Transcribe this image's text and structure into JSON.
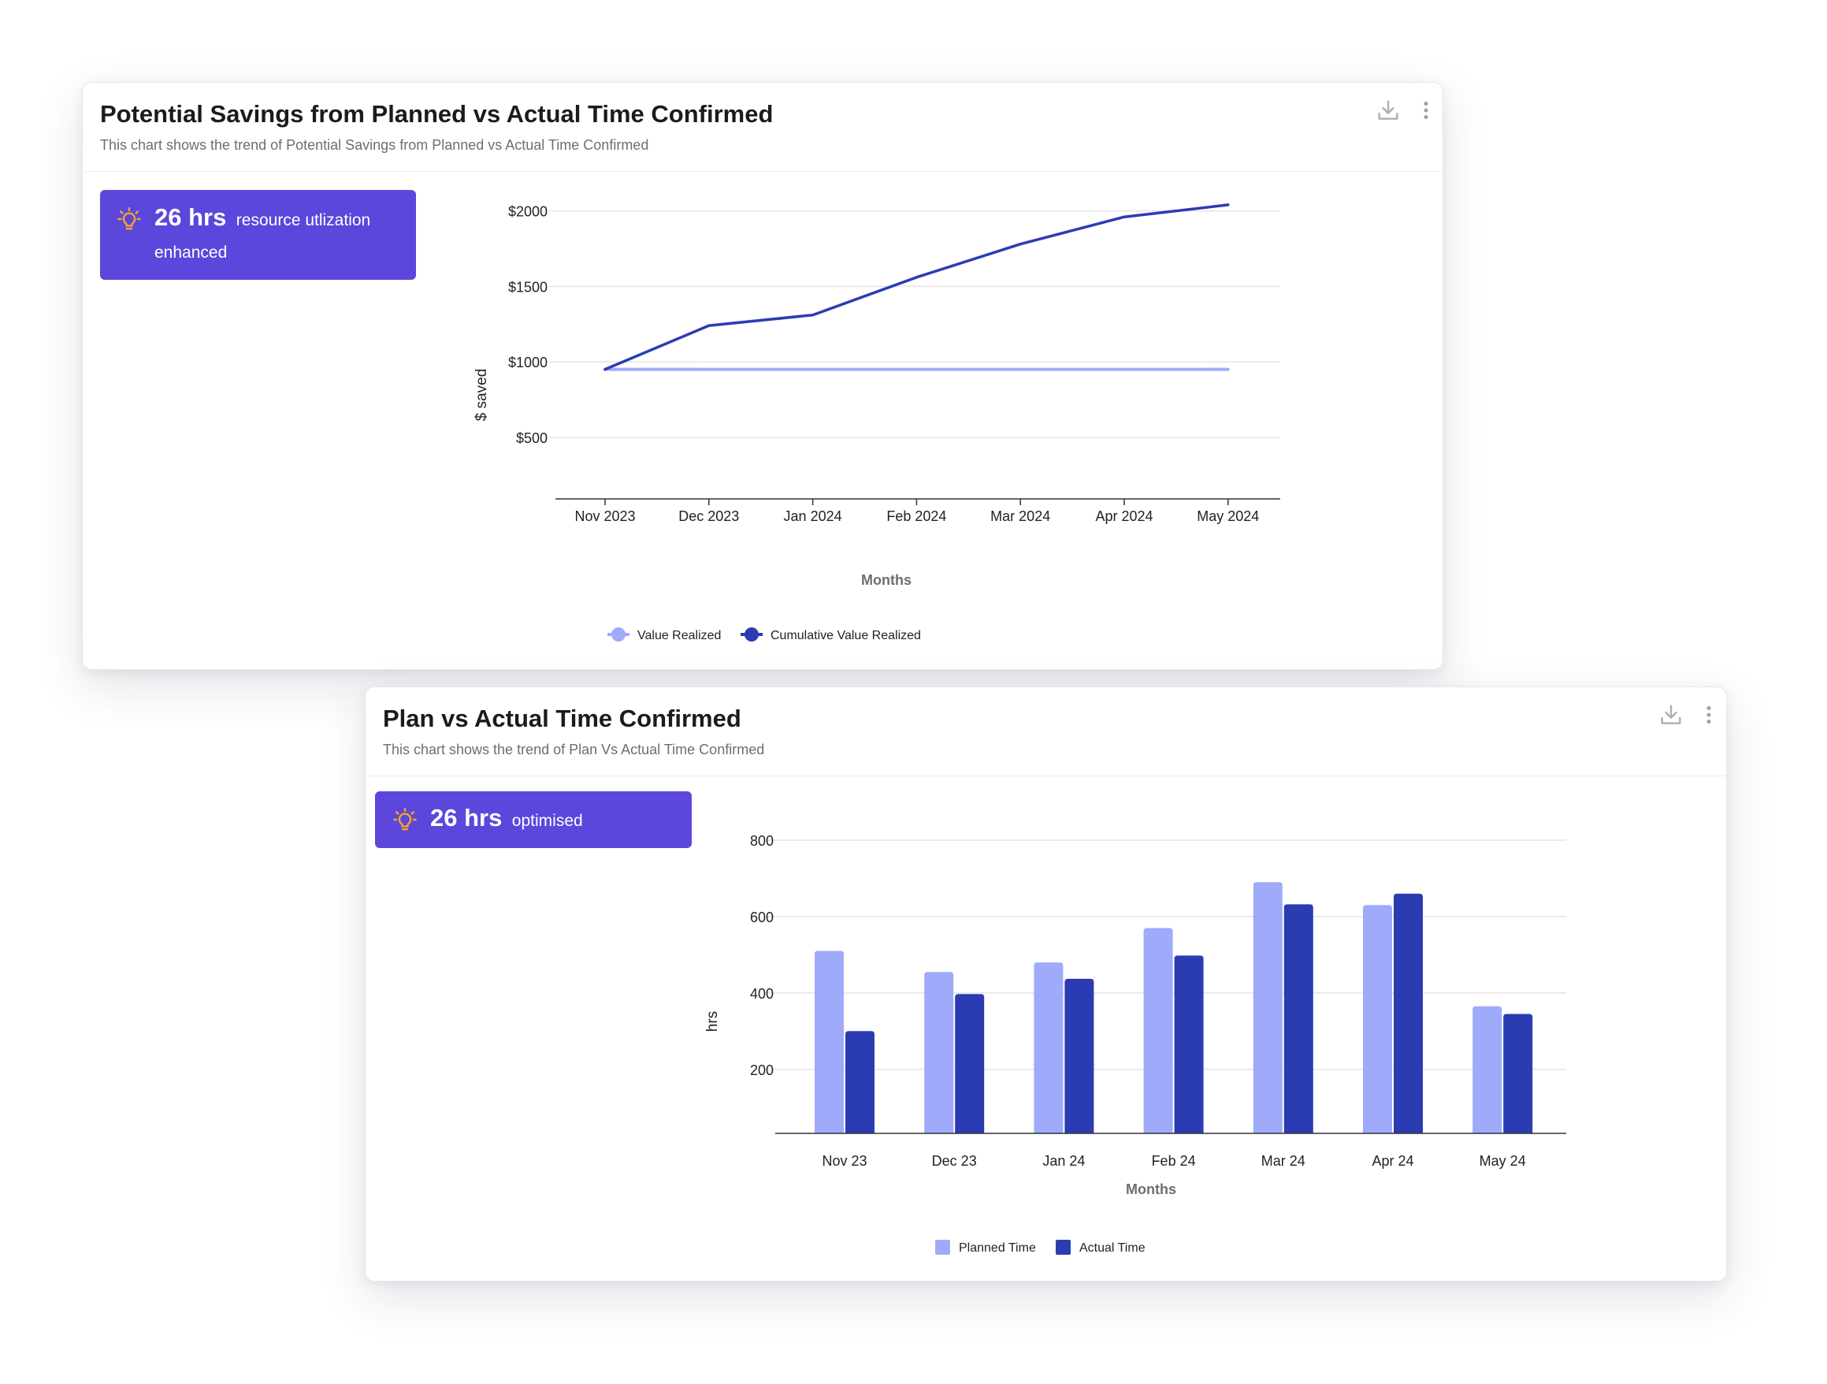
{
  "cards": [
    {
      "title": "Potential Savings from Planned vs Actual Time Confirmed",
      "subtitle": "This chart shows the trend of Potential Savings from Planned vs Actual Time Confirmed",
      "insight": {
        "value": "26 hrs",
        "text_line1": "resource utlization",
        "text_line2": "enhanced"
      },
      "icons": {
        "download": "download-icon",
        "more": "more-vertical-icon",
        "bulb": "lightbulb-icon"
      }
    },
    {
      "title": "Plan vs Actual Time Confirmed",
      "subtitle": "This chart shows the trend of Plan Vs Actual Time Confirmed",
      "insight": {
        "value": "26 hrs",
        "text": "optimised"
      },
      "icons": {
        "download": "download-icon",
        "more": "more-vertical-icon",
        "bulb": "lightbulb-icon"
      }
    }
  ],
  "colors": {
    "light": "#9faafb",
    "dark": "#2b3cb3",
    "insight_bg": "#5b47dc",
    "bulb": "#f5a623"
  },
  "chart_data": [
    {
      "type": "line",
      "categories": [
        "Nov 2023",
        "Dec 2023",
        "Jan 2024",
        "Feb 2024",
        "Mar 2024",
        "Apr 2024",
        "May 2024"
      ],
      "series": [
        {
          "name": "Value Realized",
          "color": "#9faafb",
          "values": [
            950,
            950,
            950,
            950,
            950,
            950,
            950
          ]
        },
        {
          "name": "Cumulative Value Realized",
          "color": "#2b3cb3",
          "values": [
            950,
            1240,
            1310,
            1560,
            1780,
            1960,
            2040
          ]
        }
      ],
      "yticks": [
        500,
        1000,
        1500,
        2000
      ],
      "ytick_labels": [
        "$500",
        "$1000",
        "$1500",
        "$2000"
      ],
      "ylim": [
        50,
        2050
      ],
      "xlabel": "Months",
      "ylabel": "$ saved",
      "grid": true,
      "legend": "bottom-center"
    },
    {
      "type": "bar",
      "categories": [
        "Nov 23",
        "Dec 23",
        "Jan 24",
        "Feb 24",
        "Mar 24",
        "Apr 24",
        "May 24"
      ],
      "series": [
        {
          "name": "Planned Time",
          "color": "#9faafb",
          "values": [
            510,
            455,
            480,
            570,
            690,
            630,
            365
          ]
        },
        {
          "name": "Actual Time",
          "color": "#2b3cb3",
          "values": [
            300,
            397,
            437,
            498,
            632,
            660,
            345
          ]
        }
      ],
      "yticks": [
        200,
        400,
        600,
        800
      ],
      "ytick_labels": [
        "200",
        "400",
        "600",
        "800"
      ],
      "ylim": [
        20,
        800
      ],
      "xlabel": "Months",
      "ylabel": "hrs",
      "grid": true,
      "legend": "bottom-center"
    }
  ]
}
